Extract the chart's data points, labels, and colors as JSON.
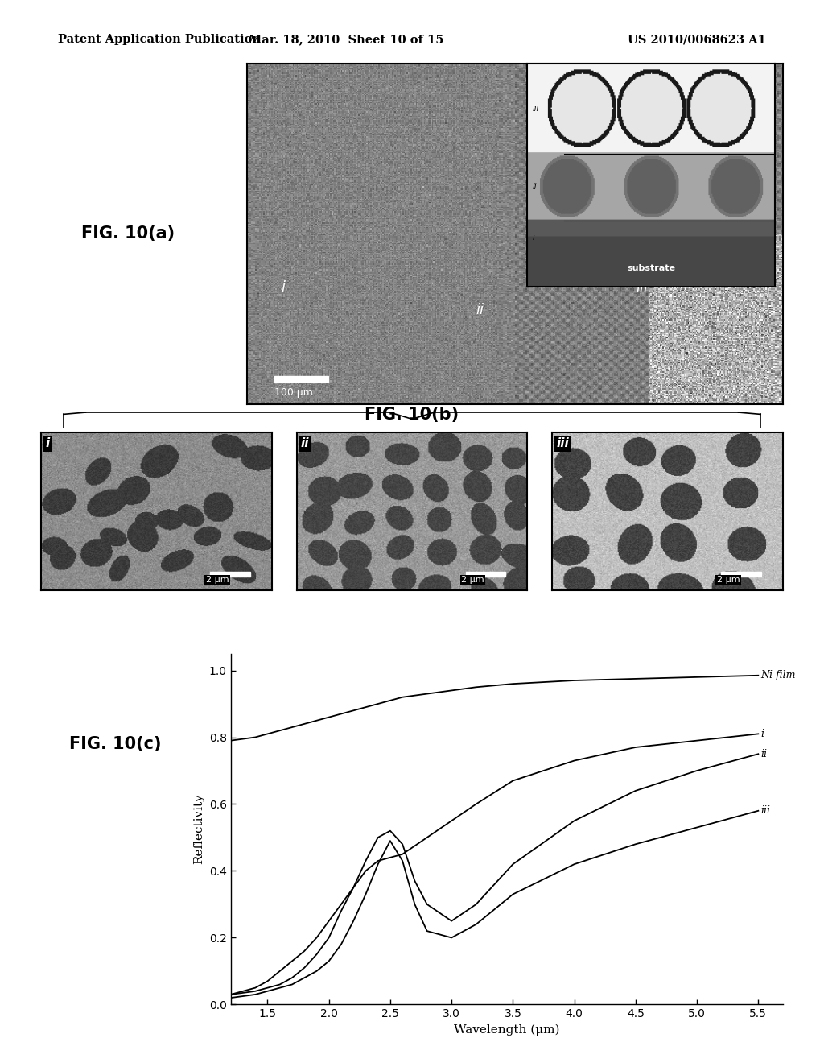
{
  "background_color": "#ffffff",
  "header": {
    "left": "Patent Application Publication",
    "center": "Mar. 18, 2010  Sheet 10 of 15",
    "right": "US 2010/0068623 A1"
  },
  "fig_label_a": "FIG. 10(a)",
  "fig_label_b": "FIG. 10(b)",
  "fig_label_c": "FIG. 10(c)",
  "plot_c": {
    "xlabel": "Wavelength (μm)",
    "ylabel": "Reflectivity",
    "xlim": [
      1.2,
      5.7
    ],
    "ylim": [
      0.0,
      1.05
    ],
    "xticks": [
      1.5,
      2.0,
      2.5,
      3.0,
      3.5,
      4.0,
      4.5,
      5.0,
      5.5
    ],
    "yticks": [
      0.0,
      0.2,
      0.4,
      0.6,
      0.8,
      1.0
    ],
    "Ni_film_x": [
      1.2,
      1.4,
      1.6,
      1.8,
      2.0,
      2.2,
      2.4,
      2.6,
      2.8,
      3.0,
      3.2,
      3.5,
      4.0,
      4.5,
      5.0,
      5.5
    ],
    "Ni_film_y": [
      0.79,
      0.8,
      0.82,
      0.84,
      0.86,
      0.88,
      0.9,
      0.92,
      0.93,
      0.94,
      0.95,
      0.96,
      0.97,
      0.975,
      0.98,
      0.985
    ],
    "curve_i_x": [
      1.2,
      1.4,
      1.5,
      1.6,
      1.7,
      1.8,
      1.9,
      2.0,
      2.1,
      2.2,
      2.3,
      2.4,
      2.5,
      2.6,
      2.8,
      3.0,
      3.2,
      3.5,
      4.0,
      4.5,
      5.0,
      5.5
    ],
    "curve_i_y": [
      0.03,
      0.05,
      0.07,
      0.1,
      0.13,
      0.16,
      0.2,
      0.25,
      0.3,
      0.35,
      0.4,
      0.43,
      0.44,
      0.45,
      0.5,
      0.55,
      0.6,
      0.67,
      0.73,
      0.77,
      0.79,
      0.81
    ],
    "curve_ii_x": [
      1.2,
      1.4,
      1.5,
      1.6,
      1.7,
      1.8,
      1.9,
      2.0,
      2.1,
      2.2,
      2.3,
      2.4,
      2.5,
      2.6,
      2.7,
      2.8,
      3.0,
      3.2,
      3.5,
      4.0,
      4.5,
      5.0,
      5.5
    ],
    "curve_ii_y": [
      0.03,
      0.04,
      0.05,
      0.06,
      0.08,
      0.11,
      0.15,
      0.2,
      0.28,
      0.35,
      0.43,
      0.5,
      0.52,
      0.48,
      0.37,
      0.3,
      0.25,
      0.3,
      0.42,
      0.55,
      0.64,
      0.7,
      0.75
    ],
    "curve_iii_x": [
      1.2,
      1.4,
      1.5,
      1.6,
      1.7,
      1.8,
      1.9,
      2.0,
      2.1,
      2.2,
      2.3,
      2.4,
      2.5,
      2.6,
      2.7,
      2.8,
      3.0,
      3.2,
      3.5,
      4.0,
      4.5,
      5.0,
      5.5
    ],
    "curve_iii_y": [
      0.02,
      0.03,
      0.04,
      0.05,
      0.06,
      0.08,
      0.1,
      0.13,
      0.18,
      0.25,
      0.33,
      0.42,
      0.49,
      0.43,
      0.3,
      0.22,
      0.2,
      0.24,
      0.33,
      0.42,
      0.48,
      0.53,
      0.58
    ]
  }
}
